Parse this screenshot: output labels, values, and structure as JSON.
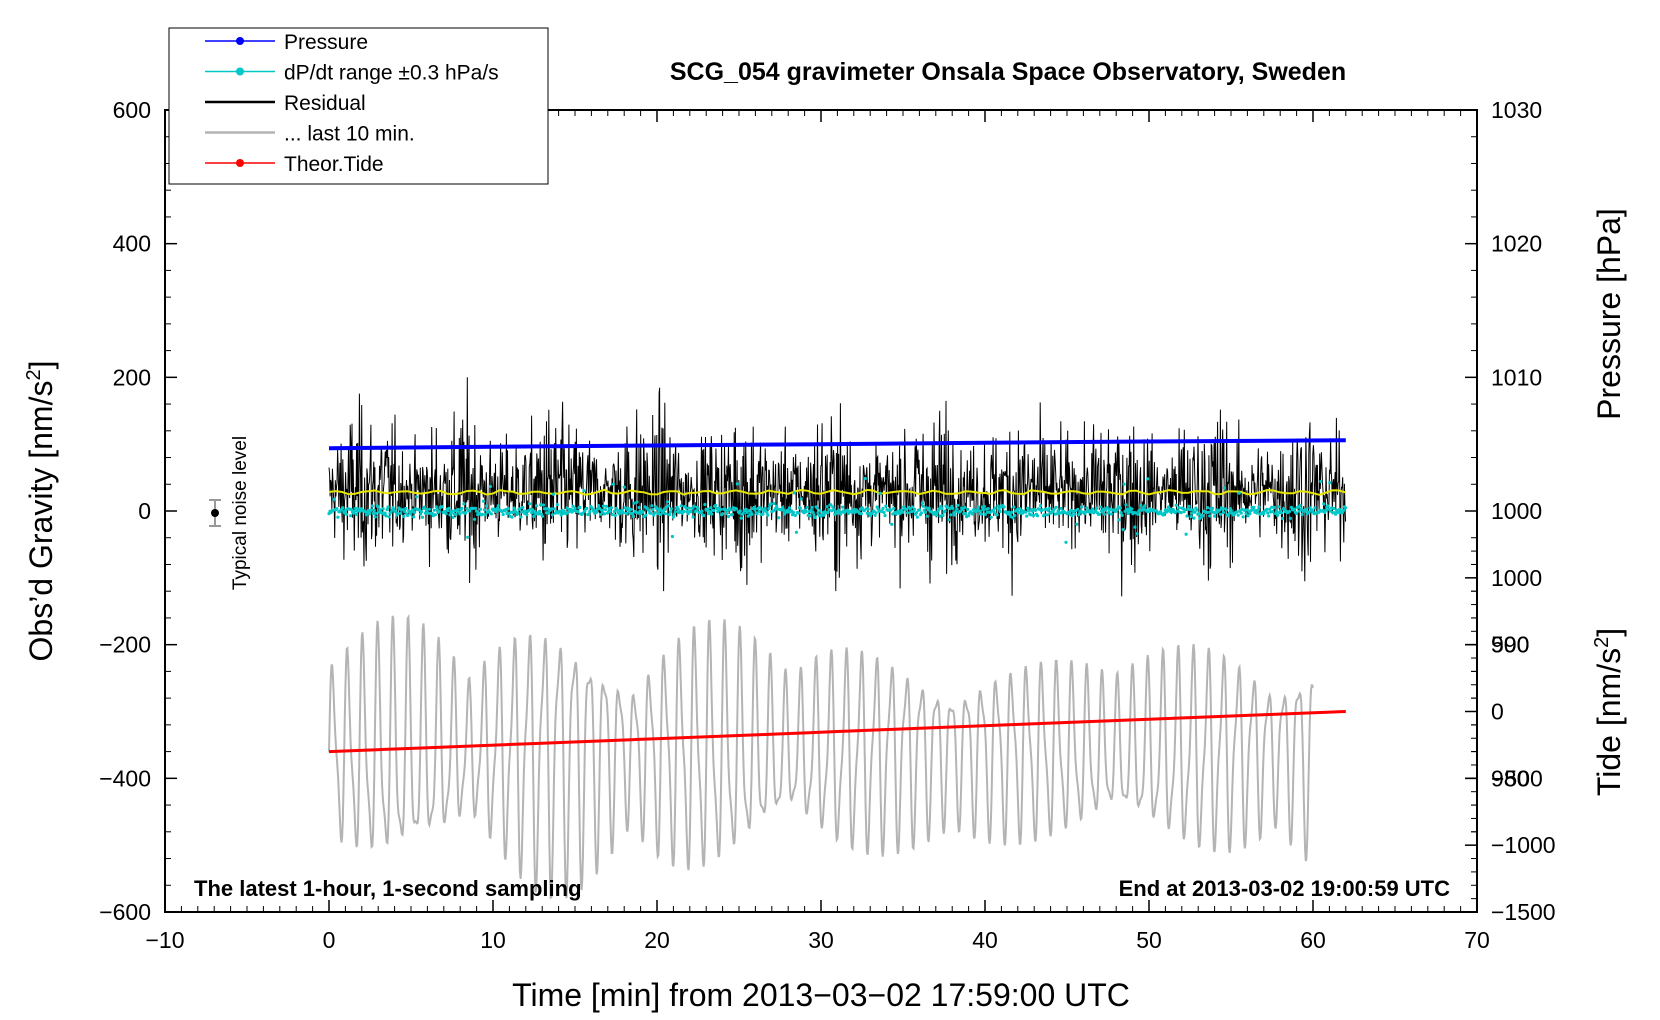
{
  "chart_data": {
    "type": "line",
    "title": "SCG_054 gravimeter Onsala Space Observatory, Sweden",
    "xlabel": "Time [min] from 2013−03−02 17:59:00 UTC",
    "ylabel_left": "Obs’d Gravity [nm/s",
    "ylabel_left_sup": "2",
    "ylabel_left_close": "]",
    "ylabel_right_pressure": "Pressure [hPa]",
    "ylabel_right_tide": "Tide [nm/s",
    "ylabel_right_tide_sup": "2",
    "ylabel_right_tide_close": "]",
    "xlim": [
      -10,
      70
    ],
    "ylim": [
      -600,
      600
    ],
    "pressure_lim": [
      970,
      1030
    ],
    "tide_lim": [
      -1500,
      4500
    ],
    "x_ticks": [
      {
        "value": -10,
        "label": "−10"
      },
      {
        "value": 0,
        "label": "0"
      },
      {
        "value": 10,
        "label": "10"
      },
      {
        "value": 20,
        "label": "20"
      },
      {
        "value": 30,
        "label": "30"
      },
      {
        "value": 40,
        "label": "40"
      },
      {
        "value": 50,
        "label": "50"
      },
      {
        "value": 60,
        "label": "60"
      },
      {
        "value": 70,
        "label": "70"
      }
    ],
    "y_ticks": [
      {
        "value": 600,
        "label": "600"
      },
      {
        "value": 400,
        "label": "400"
      },
      {
        "value": 200,
        "label": "200"
      },
      {
        "value": 0,
        "label": "0"
      },
      {
        "value": -200,
        "label": "−200"
      },
      {
        "value": -400,
        "label": "−400"
      },
      {
        "value": -600,
        "label": "−600"
      }
    ],
    "pressure_ticks": [
      {
        "value": 1030,
        "label": "1030"
      },
      {
        "value": 1020,
        "label": "1020"
      },
      {
        "value": 1010,
        "label": "1010"
      },
      {
        "value": 1000,
        "label": "1000"
      },
      {
        "value": 990,
        "label": "990"
      },
      {
        "value": 980,
        "label": "980"
      }
    ],
    "tide_ticks": [
      {
        "value": 1000,
        "label": "1000"
      },
      {
        "value": 500,
        "label": "500"
      },
      {
        "value": 0,
        "label": "0"
      },
      {
        "value": -500,
        "label": "−500"
      },
      {
        "value": -1000,
        "label": "−1000"
      },
      {
        "value": -1500,
        "label": "−1500"
      }
    ],
    "legend": [
      {
        "label": "Pressure",
        "color": "#0000ff",
        "marker": true
      },
      {
        "label": "dP/dt range ±0.3 hPa/s",
        "color": "#00c8c8",
        "marker": true
      },
      {
        "label": "Residual",
        "color": "#000000",
        "marker": false
      },
      {
        "label": "... last 10 min.",
        "color": "#b4b4b4",
        "marker": false
      },
      {
        "label": "Theor.Tide",
        "color": "#ff0000",
        "marker": true
      }
    ],
    "legend_position": "top-left",
    "annotation_left": "The latest 1-hour, 1-second sampling",
    "annotation_right": "End at 2013-03-02 19:00:59 UTC",
    "noise_label": "Typical noise level",
    "noise_bar": {
      "x": -7,
      "center": 0,
      "halfwidth": 20
    },
    "series": [
      {
        "name": "Pressure",
        "color": "#0000ff",
        "x": [
          0,
          10,
          20,
          30,
          40,
          50,
          62
        ],
        "pressure_hPa": [
          1004.7,
          1004.8,
          1004.9,
          1005.0,
          1005.1,
          1005.2,
          1005.3
        ]
      },
      {
        "name": "dP/dt range ±0.3 hPa/s",
        "color": "#00c8c8",
        "x_range": [
          0,
          62
        ],
        "center_pressure_hPa": 1000.0,
        "spread_hPa": 0.5
      },
      {
        "name": "Residual",
        "color": "#000000",
        "x_range": [
          0,
          62
        ],
        "center": 30,
        "amplitude_range": [
          -170,
          200
        ]
      },
      {
        "name": "Residual mean",
        "color": "#e6e600",
        "x_range": [
          0,
          62
        ],
        "value": 28
      },
      {
        "name": "... last 10 min.",
        "color": "#b4b4b4",
        "x_range": [
          0,
          60
        ],
        "center_tide": -300,
        "amplitude_tide": 1000
      },
      {
        "name": "Theor.Tide",
        "color": "#ff0000",
        "x": [
          0,
          62
        ],
        "tide_nm_s2": [
          -300,
          0
        ]
      }
    ]
  }
}
